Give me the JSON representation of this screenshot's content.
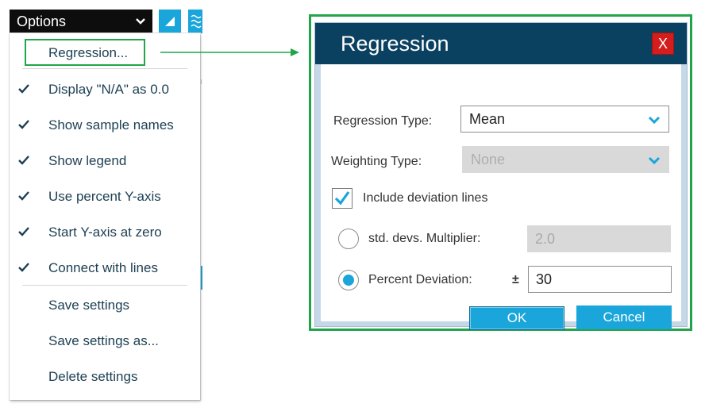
{
  "options_menu": {
    "button_label": "Options",
    "items": [
      {
        "label": "Regression...",
        "checked": false
      },
      {
        "label": "Display \"N/A\" as 0.0",
        "checked": true
      },
      {
        "label": "Show sample names",
        "checked": true
      },
      {
        "label": "Show legend",
        "checked": true
      },
      {
        "label": "Use percent Y-axis",
        "checked": true
      },
      {
        "label": "Start Y-axis at zero",
        "checked": true
      },
      {
        "label": "Connect with lines",
        "checked": true
      },
      {
        "label": "Save settings",
        "checked": false
      },
      {
        "label": "Save settings as...",
        "checked": false
      },
      {
        "label": "Delete settings",
        "checked": false
      }
    ]
  },
  "dialog": {
    "title": "Regression",
    "close_label": "X",
    "regression_type": {
      "label": "Regression Type:",
      "value": "Mean"
    },
    "weighting_type": {
      "label": "Weighting Type:",
      "value": "None"
    },
    "include_deviation_lines": {
      "label": "Include deviation lines",
      "checked": true
    },
    "std_devs": {
      "label": "std. devs. Multiplier:",
      "value": "2.0",
      "selected": false
    },
    "percent_deviation": {
      "label": "Percent Deviation:",
      "plusminus": "±",
      "value": "30",
      "selected": true
    },
    "ok_label": "OK",
    "cancel_label": "Cancel"
  },
  "colors": {
    "accent": "#1aa6da",
    "title_bar": "#0b4160",
    "highlight": "#21a54b",
    "close": "#d41d1d"
  }
}
